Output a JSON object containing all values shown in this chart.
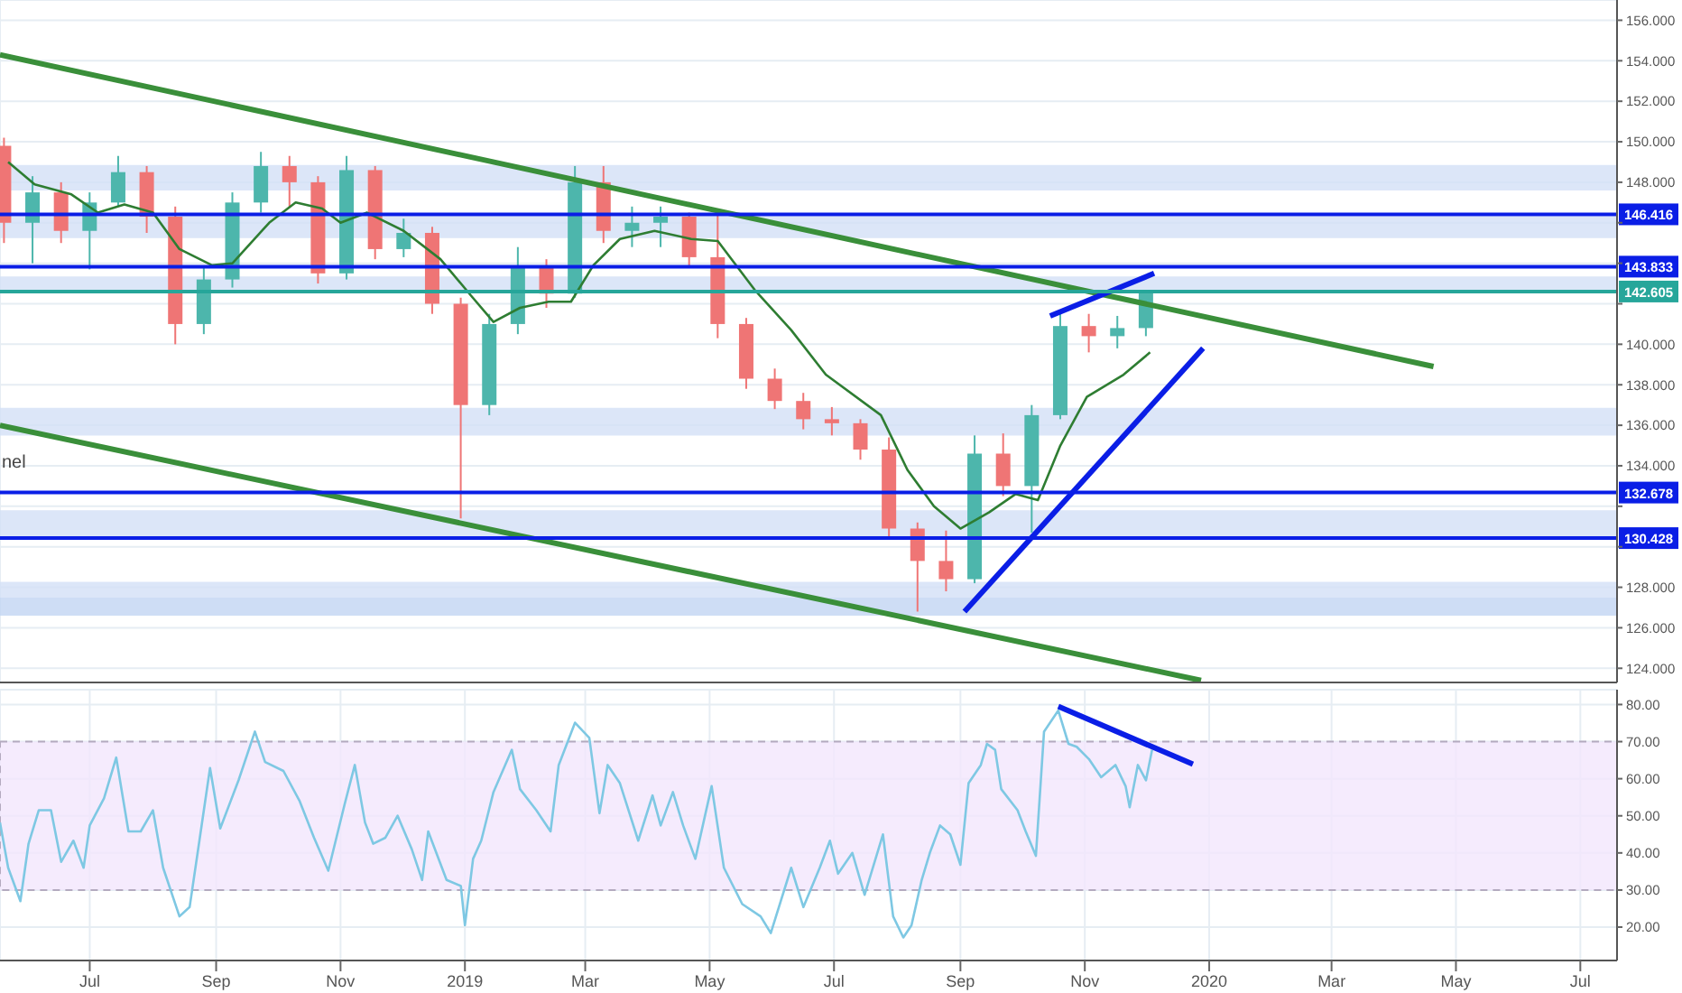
{
  "chart_data": [
    {
      "type": "candlestick",
      "xlim": [
        "2018-05-18",
        "2020-07-19"
      ],
      "ylim": [
        123.3,
        157
      ],
      "xticks": [
        "2018-07-01",
        "2018-09-01",
        "2018-11-01",
        "2019-01-01",
        "2019-03-01",
        "2019-05-01",
        "2019-07-01",
        "2019-09-01",
        "2019-11-01",
        "2020-01-01",
        "2020-03-01",
        "2020-05-01",
        "2020-07-01"
      ],
      "yticks": [
        {
          "value": 124,
          "label": "124.000"
        },
        {
          "value": 126,
          "label": "126.000"
        },
        {
          "value": 128,
          "label": "128.000"
        },
        {
          "value": 130,
          "label": null
        },
        {
          "value": 132,
          "label": null
        },
        {
          "value": 134,
          "label": "134.000"
        },
        {
          "value": 136,
          "label": "136.000"
        },
        {
          "value": 138,
          "label": "138.000"
        },
        {
          "value": 140,
          "label": "140.000"
        },
        {
          "value": 142,
          "label": null
        },
        {
          "value": 144,
          "label": null
        },
        {
          "value": 146,
          "label": null
        },
        {
          "value": 148,
          "label": "148.000"
        },
        {
          "value": 150,
          "label": "150.000"
        },
        {
          "value": 152,
          "label": "152.000"
        },
        {
          "value": 154,
          "label": "154.000"
        },
        {
          "value": 156,
          "label": "156.000"
        }
      ],
      "grid": true,
      "tick_labels": "y",
      "x": [
        "2018-05-20",
        "2018-06-03",
        "2018-06-17",
        "2018-07-01",
        "2018-07-15",
        "2018-07-29",
        "2018-08-12",
        "2018-08-26",
        "2018-09-09",
        "2018-09-23",
        "2018-10-07",
        "2018-10-21",
        "2018-11-04",
        "2018-11-18",
        "2018-12-02",
        "2018-12-16",
        "2018-12-30",
        "2019-01-13",
        "2019-01-27",
        "2019-02-10",
        "2019-02-24",
        "2019-03-10",
        "2019-03-24",
        "2019-04-07",
        "2019-04-21",
        "2019-05-05",
        "2019-05-19",
        "2019-06-02",
        "2019-06-16",
        "2019-06-30",
        "2019-07-14",
        "2019-07-28",
        "2019-08-11",
        "2019-08-25",
        "2019-09-08",
        "2019-09-22",
        "2019-10-06",
        "2019-10-20",
        "2019-11-03",
        "2019-11-17",
        "2019-12-01"
      ],
      "ohlc": [
        [
          149.8,
          150.2,
          145,
          146
        ],
        [
          146,
          148.3,
          144,
          147.5
        ],
        [
          147.5,
          148,
          145,
          145.6
        ],
        [
          145.6,
          147.5,
          143.7,
          147
        ],
        [
          147,
          149.3,
          146.8,
          148.5
        ],
        [
          148.5,
          148.8,
          145.5,
          146.3
        ],
        [
          146.3,
          146.8,
          140,
          141
        ],
        [
          141,
          143.8,
          140.5,
          143.2
        ],
        [
          143.2,
          147.5,
          142.8,
          147
        ],
        [
          147,
          149.5,
          146.5,
          148.8
        ],
        [
          148.8,
          149.3,
          146.8,
          148
        ],
        [
          148,
          148.3,
          143,
          143.5
        ],
        [
          143.5,
          149.3,
          143.2,
          148.6
        ],
        [
          148.6,
          148.8,
          144.2,
          144.7
        ],
        [
          144.7,
          146.2,
          144.3,
          145.5
        ],
        [
          145.5,
          145.8,
          141.5,
          142
        ],
        [
          142,
          142.3,
          131.4,
          137
        ],
        [
          137,
          141.5,
          136.5,
          141
        ],
        [
          141,
          144.8,
          140.5,
          143.8
        ],
        [
          143.8,
          144.2,
          141.8,
          142.5
        ],
        [
          142.5,
          148.8,
          142.3,
          148
        ],
        [
          148,
          148.8,
          145,
          145.6
        ],
        [
          145.6,
          146.8,
          144.8,
          146
        ],
        [
          146,
          146.8,
          144.8,
          146.3
        ],
        [
          146.3,
          146.5,
          143.8,
          144.3
        ],
        [
          144.3,
          146.6,
          140.3,
          141
        ],
        [
          141,
          141.3,
          137.8,
          138.3
        ],
        [
          138.3,
          138.8,
          136.8,
          137.2
        ],
        [
          137.2,
          137.6,
          135.8,
          136.3
        ],
        [
          136.3,
          136.9,
          135.5,
          136.1
        ],
        [
          136.1,
          136.3,
          134.3,
          134.8
        ],
        [
          134.8,
          135.4,
          130.4,
          130.9
        ],
        [
          130.9,
          131.2,
          126.8,
          129.3
        ],
        [
          129.3,
          130.8,
          127.8,
          128.4
        ],
        [
          128.4,
          135.5,
          128.2,
          134.6
        ],
        [
          134.6,
          135.6,
          132.5,
          133
        ],
        [
          133,
          137,
          130.7,
          136.5
        ],
        [
          136.5,
          141.5,
          136.3,
          140.9
        ],
        [
          140.9,
          141.5,
          139.6,
          140.4
        ],
        [
          140.4,
          141.4,
          139.8,
          140.8
        ],
        [
          140.8,
          142.6,
          140.4,
          142.6
        ]
      ],
      "colors": [
        "#ef7575",
        "#4db6ac",
        "#ef7575",
        "#4db6ac",
        "#4db6ac",
        "#ef7575",
        "#ef7575",
        "#4db6ac",
        "#4db6ac",
        "#4db6ac",
        "#ef7575",
        "#ef7575",
        "#4db6ac",
        "#ef7575",
        "#4db6ac",
        "#ef7575",
        "#ef7575",
        "#4db6ac",
        "#4db6ac",
        "#ef7575",
        "#4db6ac",
        "#ef7575",
        "#4db6ac",
        "#4db6ac",
        "#ef7575",
        "#ef7575",
        "#ef7575",
        "#ef7575",
        "#ef7575",
        "#ef7575",
        "#ef7575",
        "#ef7575",
        "#ef7575",
        "#ef7575",
        "#4db6ac",
        "#ef7575",
        "#4db6ac",
        "#4db6ac",
        "#ef7575",
        "#4db6ac",
        "#4db6ac"
      ],
      "series": [
        {
          "type": "line",
          "color": "#2e7d32",
          "x": [
            "2018-05-22",
            "2018-06-04",
            "2018-06-22",
            "2018-07-05",
            "2018-07-18",
            "2018-08-01",
            "2018-08-14",
            "2018-08-30",
            "2018-09-09",
            "2018-09-27",
            "2018-10-10",
            "2018-10-23",
            "2018-11-01",
            "2018-11-14",
            "2018-12-02",
            "2018-12-20",
            "2019-01-04",
            "2019-01-15",
            "2019-01-28",
            "2019-02-11",
            "2019-02-22",
            "2019-03-05",
            "2019-03-18",
            "2019-04-04",
            "2019-04-22",
            "2019-05-05",
            "2019-05-23",
            "2019-06-10",
            "2019-06-27",
            "2019-07-24",
            "2019-08-06",
            "2019-08-19",
            "2019-09-01",
            "2019-09-15",
            "2019-09-28",
            "2019-10-09",
            "2019-10-20",
            "2019-11-02",
            "2019-11-20",
            "2019-12-03"
          ],
          "values": [
            149,
            147.9,
            147.4,
            146.5,
            146.9,
            146.5,
            144.7,
            143.9,
            144,
            146,
            147,
            146.7,
            146,
            146.5,
            145.6,
            144.2,
            142.4,
            141.1,
            141.8,
            142.1,
            142.1,
            143.9,
            145.2,
            145.6,
            145.2,
            145.1,
            142.7,
            140.7,
            138.5,
            136.5,
            133.8,
            132,
            130.9,
            131.7,
            132.6,
            132.3,
            135,
            137.4,
            138.5,
            139.6
          ]
        },
        {
          "type": "line",
          "color": "#3a8f3a",
          "x": [
            "2018-05-18",
            "2020-04-20"
          ],
          "values": [
            154.3,
            138.9
          ]
        },
        {
          "type": "line",
          "color": "#3a8f3a",
          "x": [
            "2018-05-18",
            "2019-12-28"
          ],
          "values": [
            136,
            123.4
          ]
        },
        {
          "type": "line",
          "color": "#0a1ee6",
          "x": [
            "2019-09-03",
            "2019-12-29"
          ],
          "values": [
            126.8,
            139.8
          ]
        },
        {
          "type": "line",
          "color": "#0a1ee6",
          "x": [
            "2019-10-15",
            "2019-12-05"
          ],
          "values": [
            141.4,
            143.5
          ]
        }
      ],
      "bands": [
        {
          "axis": "y",
          "from": 147.592,
          "to": 148.856,
          "color": "#d3e0f6"
        },
        {
          "axis": "y",
          "from": 145.247,
          "to": 146.3,
          "color": "#d3e0f6"
        },
        {
          "axis": "y",
          "from": 142.61,
          "to": 143.344,
          "color": "#d3e0f6"
        },
        {
          "axis": "y",
          "from": 135.491,
          "to": 136.868,
          "color": "#d3e0f6"
        },
        {
          "axis": "y",
          "from": 130.52,
          "to": 131.804,
          "color": "#d3e0f6"
        },
        {
          "axis": "y",
          "from": 127.485,
          "to": 128.267,
          "color": "#d3e0f6"
        },
        {
          "axis": "y",
          "from": 126.594,
          "to": 127.485,
          "color": "#c2d4f2"
        }
      ],
      "ref_lines": [
        {
          "axis": "y",
          "value": 146.416,
          "label": "146.416",
          "color": "#0a1ee6"
        },
        {
          "axis": "y",
          "value": 143.833,
          "label": "143.833",
          "color": "#0a1ee6"
        },
        {
          "axis": "y",
          "value": 142.605,
          "label": "142.605",
          "color": "#26a69a"
        },
        {
          "axis": "y",
          "value": 132.678,
          "label": "132.678",
          "color": "#0a1ee6"
        },
        {
          "axis": "y",
          "value": 130.428,
          "label": "130.428",
          "color": "#0a1ee6"
        }
      ],
      "annotations": [
        "nel"
      ]
    },
    {
      "type": "line",
      "xlim": [
        "2018-05-18",
        "2020-07-19"
      ],
      "ylim": [
        11,
        84
      ],
      "xticks": [
        {
          "value": "2018-07-01",
          "label": "Jul"
        },
        {
          "value": "2018-09-01",
          "label": "Sep"
        },
        {
          "value": "2018-11-01",
          "label": "Nov"
        },
        {
          "value": "2019-01-01",
          "label": "2019"
        },
        {
          "value": "2019-03-01",
          "label": "Mar"
        },
        {
          "value": "2019-05-01",
          "label": "May"
        },
        {
          "value": "2019-07-01",
          "label": "Jul"
        },
        {
          "value": "2019-09-01",
          "label": "Sep"
        },
        {
          "value": "2019-11-01",
          "label": "Nov"
        },
        {
          "value": "2020-01-01",
          "label": "2020"
        },
        {
          "value": "2020-03-01",
          "label": "Mar"
        },
        {
          "value": "2020-05-01",
          "label": "May"
        },
        {
          "value": "2020-07-01",
          "label": "Jul"
        }
      ],
      "yticks": [
        {
          "value": 20,
          "label": "20.00"
        },
        {
          "value": 30,
          "label": "30.00"
        },
        {
          "value": 40,
          "label": "40.00"
        },
        {
          "value": 50,
          "label": "50.00"
        },
        {
          "value": 60,
          "label": "60.00"
        },
        {
          "value": 70,
          "label": "70.00"
        },
        {
          "value": 80,
          "label": "80.00"
        }
      ],
      "grid": true,
      "series": [
        {
          "type": "line",
          "color": "#7ec8e3",
          "x": [
            "2018-05-18",
            "2018-05-22",
            "2018-05-28",
            "2018-06-01",
            "2018-06-06",
            "2018-06-12",
            "2018-06-17",
            "2018-06-23",
            "2018-06-28",
            "2018-07-01",
            "2018-07-08",
            "2018-07-14",
            "2018-07-20",
            "2018-07-26",
            "2018-08-01",
            "2018-08-06",
            "2018-08-14",
            "2018-08-19",
            "2018-08-24",
            "2018-08-29",
            "2018-09-03",
            "2018-09-12",
            "2018-09-20",
            "2018-09-25",
            "2018-10-04",
            "2018-10-12",
            "2018-10-19",
            "2018-10-26",
            "2018-11-03",
            "2018-11-08",
            "2018-11-13",
            "2018-11-17",
            "2018-11-23",
            "2018-11-29",
            "2018-12-06",
            "2018-12-11",
            "2018-12-14",
            "2018-12-23",
            "2018-12-30",
            "2019-01-01",
            "2019-01-05",
            "2019-01-09",
            "2019-01-15",
            "2019-01-24",
            "2019-01-28",
            "2019-02-05",
            "2019-02-12",
            "2019-02-16",
            "2019-02-24",
            "2019-03-03",
            "2019-03-08",
            "2019-03-12",
            "2019-03-18",
            "2019-03-27",
            "2019-04-03",
            "2019-04-07",
            "2019-04-13",
            "2019-04-18",
            "2019-04-24",
            "2019-04-29",
            "2019-05-02",
            "2019-05-08",
            "2019-05-17",
            "2019-05-26",
            "2019-05-31",
            "2019-06-10",
            "2019-06-16",
            "2019-06-24",
            "2019-06-29",
            "2019-07-03",
            "2019-07-10",
            "2019-07-16",
            "2019-07-25",
            "2019-07-30",
            "2019-08-04",
            "2019-08-08",
            "2019-08-13",
            "2019-08-17",
            "2019-08-22",
            "2019-08-27",
            "2019-09-01",
            "2019-09-05",
            "2019-09-11",
            "2019-09-14",
            "2019-09-18",
            "2019-09-21",
            "2019-09-29",
            "2019-10-03",
            "2019-10-08",
            "2019-10-12",
            "2019-10-19",
            "2019-10-24",
            "2019-10-28",
            "2019-11-03",
            "2019-11-09",
            "2019-11-16",
            "2019-11-21",
            "2019-11-23",
            "2019-11-27",
            "2019-12-01",
            "2019-12-04"
          ],
          "values": [
            48.2,
            36,
            27,
            42.5,
            51.5,
            51.5,
            37.6,
            43.3,
            36,
            47.4,
            54.7,
            65.7,
            45.8,
            45.8,
            51.5,
            36,
            22.9,
            25.4,
            44.1,
            62.9,
            46.6,
            59.6,
            72.7,
            64.5,
            62.1,
            53.9,
            44.1,
            35.2,
            53.1,
            63.7,
            48.2,
            42.5,
            44.1,
            50,
            40.9,
            32.7,
            45.8,
            32.7,
            31.1,
            20.5,
            38.4,
            43.3,
            56.4,
            67.8,
            57.2,
            51.5,
            45.8,
            63.7,
            75.1,
            71,
            50.7,
            63.7,
            58.8,
            43.3,
            55.5,
            47.4,
            56.4,
            47.4,
            38.4,
            50.7,
            58,
            36,
            26.2,
            22.9,
            18.4,
            36,
            25.4,
            36,
            43.3,
            34.4,
            40,
            28.7,
            45,
            22.9,
            17.2,
            20.5,
            32.7,
            40,
            47.4,
            45,
            36.8,
            58.8,
            63.7,
            69.4,
            67.8,
            57.2,
            51.5,
            45.8,
            39.2,
            72.7,
            78.4,
            69.4,
            68.6,
            65.3,
            60.4,
            63.7,
            58,
            52.3,
            63.7,
            59.6,
            67.8
          ]
        },
        {
          "type": "line",
          "color": "#0a1ee6",
          "x": [
            "2019-10-19",
            "2019-12-24"
          ],
          "values": [
            79.5,
            63.9
          ]
        }
      ],
      "bands": [
        {
          "axis": "y",
          "from": 30,
          "to": 70,
          "color": "#f3e6fc"
        }
      ]
    }
  ]
}
